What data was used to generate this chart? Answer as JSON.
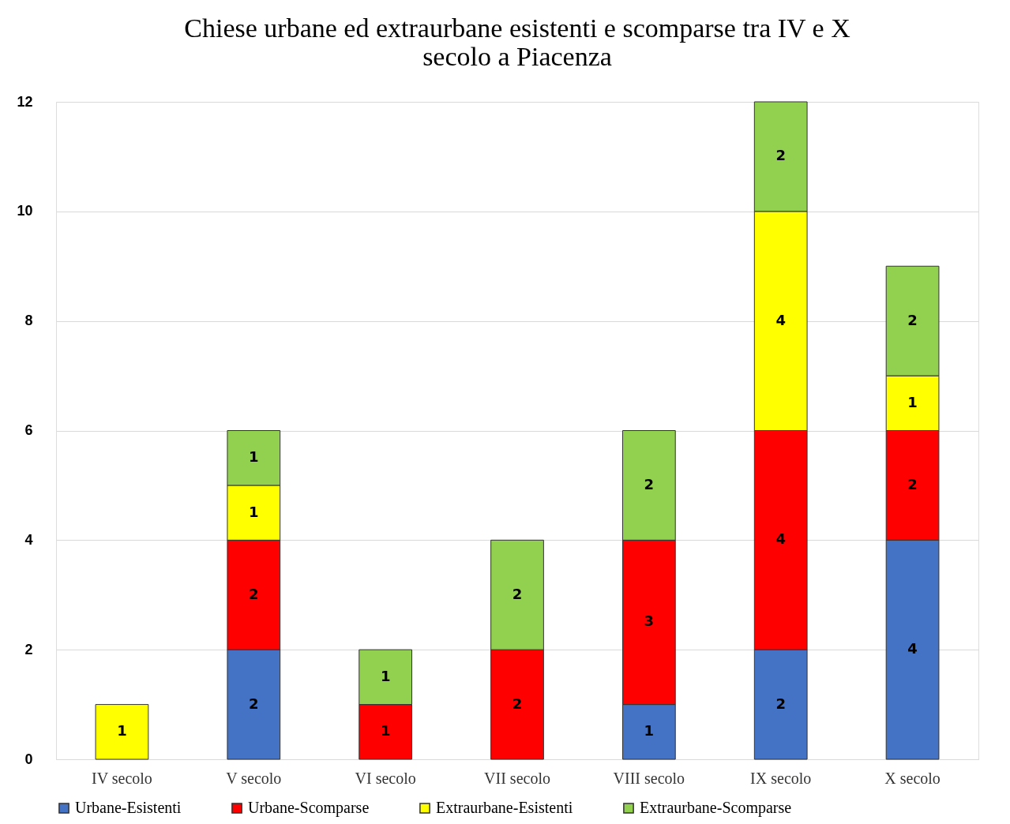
{
  "chart_data": {
    "type": "bar",
    "title": "Chiese urbane ed extraurbane esistenti e scomparse tra IV e X secolo a Piacenza",
    "categories": [
      "IV secolo",
      "V secolo",
      "VI secolo",
      "VII secolo",
      "VIII secolo",
      "IX secolo",
      "X secolo"
    ],
    "series": [
      {
        "name": "Urbane-Esistenti",
        "color": "#4472c4",
        "values": [
          null,
          2,
          null,
          null,
          1,
          2,
          4
        ]
      },
      {
        "name": "Urbane-Scomparse",
        "color": "#ff0000",
        "values": [
          null,
          2,
          1,
          2,
          3,
          4,
          2
        ]
      },
      {
        "name": "Extraurbane-Esistenti",
        "color": "#ffff00",
        "values": [
          1,
          1,
          null,
          null,
          null,
          4,
          1
        ]
      },
      {
        "name": "Extraurbane-Scomparse",
        "color": "#92d050",
        "values": [
          null,
          1,
          1,
          2,
          2,
          2,
          2
        ]
      }
    ],
    "stacked": true,
    "ylim": [
      0,
      12
    ],
    "yticks": [
      0,
      2,
      4,
      6,
      8,
      10,
      12
    ],
    "grid": "y",
    "legend": "bottom",
    "data_labels": true
  }
}
